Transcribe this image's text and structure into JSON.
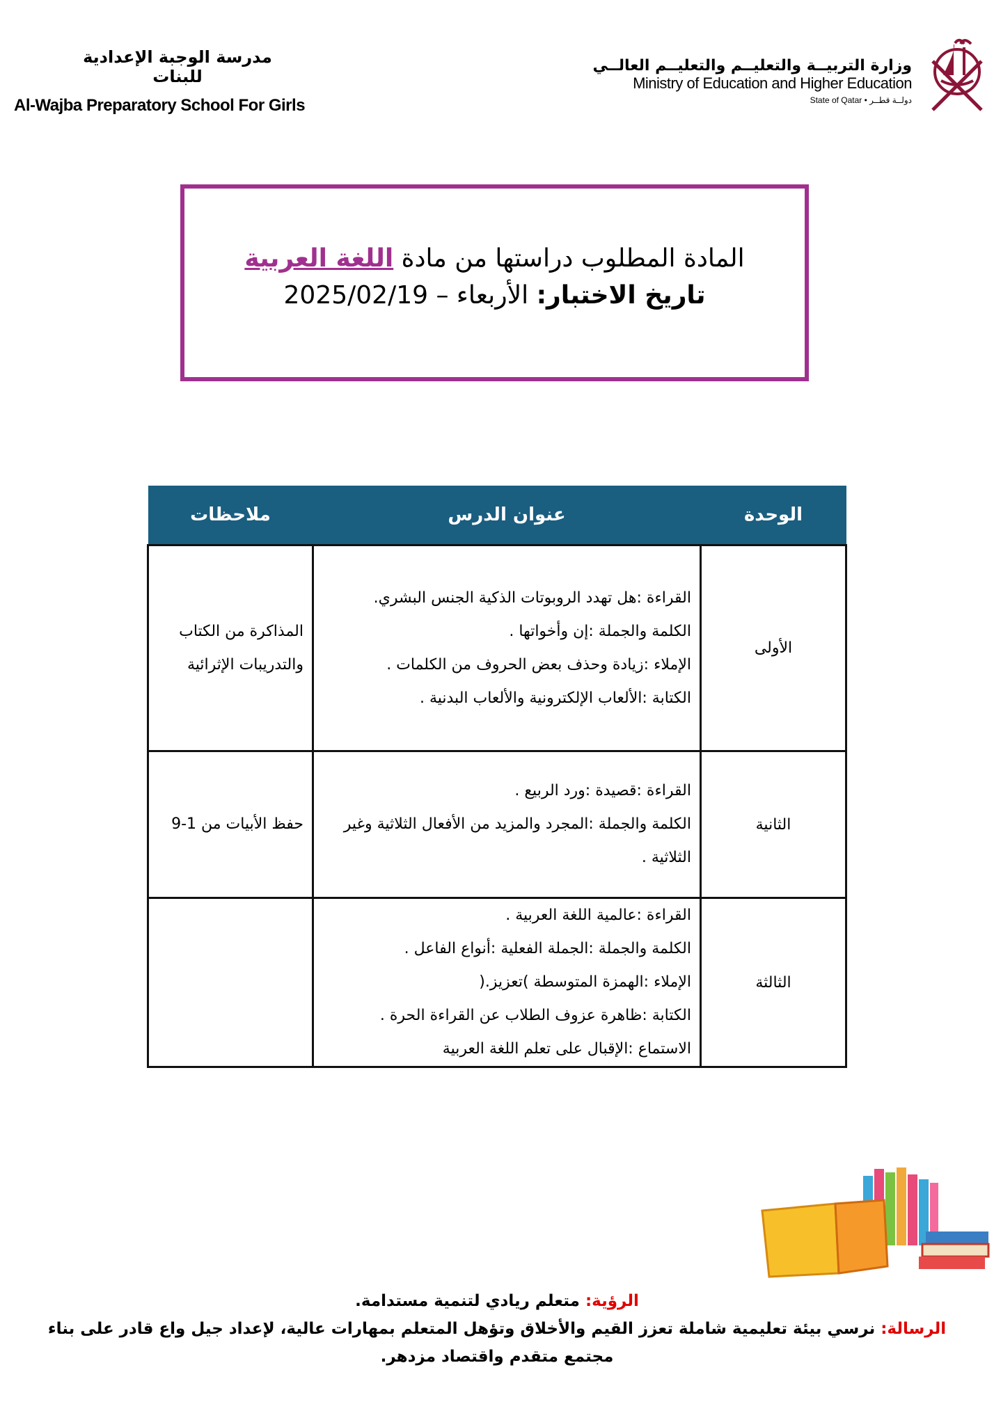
{
  "header": {
    "school_ar": "مدرسة الوجبة الإعدادية للبنات",
    "school_en": "Al-Wajba Preparatory School For Girls",
    "ministry_ar": "وزارة التربيــة والتعليــم والتعليــم العالــي",
    "ministry_en": "Ministry of Education and Higher Education",
    "state": "State of Qatar • دولــة قطــر"
  },
  "notice": {
    "line1_prefix": "المادة المطلوب دراستها من مادة",
    "subject": "اللغة العربية",
    "date_label": "تاريخ الاختبار:",
    "date_value": "الأربعاء – 2025/02/19",
    "accent_color": "#A0308F"
  },
  "table": {
    "header_color": "#1A5E80",
    "columns": [
      "الوحدة",
      "عنوان الدرس",
      "ملاحظات"
    ],
    "rows": [
      {
        "unit": "الأولى",
        "lessons": [
          "القراءة :هل تهدد الروبوتات الذكية الجنس البشري.",
          "الكلمة والجملة :إن وأخواتها .",
          "الإملاء :زيادة وحذف بعض الحروف من الكلمات .",
          "الكتابة :الألعاب الإلكترونية والألعاب البدنية ."
        ],
        "notes": "المذاكرة من الكتاب والتدريبات الإثرائية"
      },
      {
        "unit": "الثانية",
        "lessons": [
          "القراءة :قصيدة :ورد الربيع .",
          "الكلمة والجملة :المجرد والمزيد من الأفعال الثلاثية وغير الثلاثية ."
        ],
        "notes": "حفظ الأبيات من 1-9"
      },
      {
        "unit": "الثالثة",
        "lessons": [
          "القراءة :عالمية اللغة العربية .",
          "الكلمة والجملة :الجملة الفعلية :أنواع الفاعل .",
          "الإملاء :الهمزة المتوسطة )تعزيز.(",
          "الكتابة :ظاهرة عزوف الطلاب عن القراءة الحرة .",
          "الاستماع :الإقبال على تعلم اللغة العربية"
        ],
        "notes": ""
      }
    ]
  },
  "footer": {
    "vision_label": "الرؤية:",
    "vision_text": "متعلم ريادي لتنمية مستدامة.",
    "mission_label": "الرسالة:",
    "mission_text": "نرسي بيئة تعليمية شاملة تعزز القيم والأخلاق وتؤهل المتعلم بمهارات عالية، لإعداد جيل واع قادر على بناء مجتمع متقدم واقتصاد مزدهر."
  }
}
